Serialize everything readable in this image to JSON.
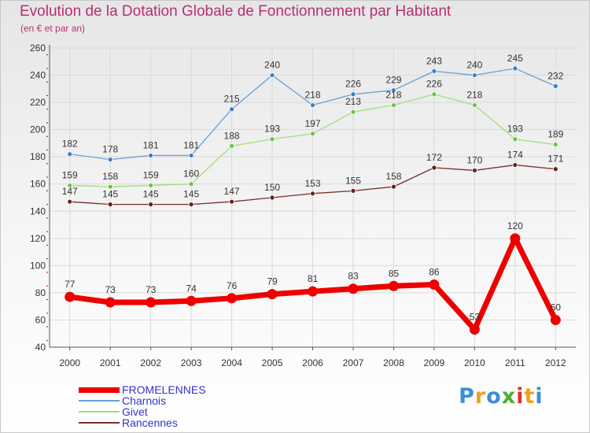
{
  "title": "Evolution de la Dotation Globale de Fonctionnement par Habitant",
  "subtitle": "(en € et par an)",
  "logo": {
    "letters": [
      "P",
      "r",
      "o",
      "x",
      "i",
      "t",
      "i"
    ],
    "colors": [
      "#3b8fd6",
      "#f0a020",
      "#3b8fd6",
      "#4caf30",
      "#e03030",
      "#f0a020",
      "#3b8fd6"
    ]
  },
  "chart_data": {
    "type": "line",
    "title": "Evolution de la Dotation Globale de Fonctionnement par Habitant",
    "subtitle": "(en € et par an)",
    "xlabel": "",
    "ylabel": "",
    "x": [
      "2000",
      "2001",
      "2002",
      "2003",
      "2004",
      "2005",
      "2006",
      "2007",
      "2008",
      "2009",
      "2010",
      "2011",
      "2012"
    ],
    "ylim": [
      40,
      260
    ],
    "yticks": [
      "40",
      "60",
      "80",
      "100",
      "120",
      "140",
      "160",
      "180",
      "200",
      "220",
      "240",
      "260"
    ],
    "grid": true,
    "legend": "bottom-left",
    "series": [
      {
        "name": "Charnois",
        "color": "#6a9fd4",
        "marker": "#3b7fc4",
        "values": [
          182,
          178,
          181,
          181,
          215,
          240,
          218,
          226,
          229,
          243,
          240,
          245,
          232
        ],
        "labels": [
          "182",
          "178",
          "181",
          "181",
          "215",
          "240",
          "218",
          "226",
          "229",
          "243",
          "240",
          "245",
          "232"
        ]
      },
      {
        "name": "Givet",
        "color": "#9be07a",
        "marker": "#6cc43e",
        "values": [
          159,
          158,
          159,
          160,
          188,
          193,
          197,
          213,
          218,
          226,
          218,
          193,
          189
        ],
        "labels": [
          "159",
          "158",
          "159",
          "160",
          "188",
          "193",
          "197",
          "213",
          "218",
          "226",
          "218",
          "193",
          "189"
        ]
      },
      {
        "name": "Rancennes",
        "color": "#7a2d2d",
        "marker": "#6a1f1f",
        "values": [
          147,
          145,
          145,
          145,
          147,
          150,
          153,
          155,
          158,
          172,
          170,
          174,
          171
        ],
        "labels": [
          "147",
          "145",
          "145",
          "145",
          "147",
          "150",
          "153",
          "155",
          "158",
          "172",
          "170",
          "174",
          "171"
        ]
      },
      {
        "name": "FROMELENNES",
        "color": "#ee0000",
        "marker": "#ee0000",
        "values": [
          77,
          73,
          73,
          74,
          76,
          79,
          81,
          83,
          85,
          86,
          53,
          120,
          60
        ],
        "labels": [
          "77",
          "73",
          "73",
          "74",
          "76",
          "79",
          "81",
          "83",
          "85",
          "86",
          "53",
          "120",
          "60"
        ]
      }
    ],
    "legend_order": [
      "FROMELENNES",
      "Charnois",
      "Givet",
      "Rancennes"
    ]
  }
}
